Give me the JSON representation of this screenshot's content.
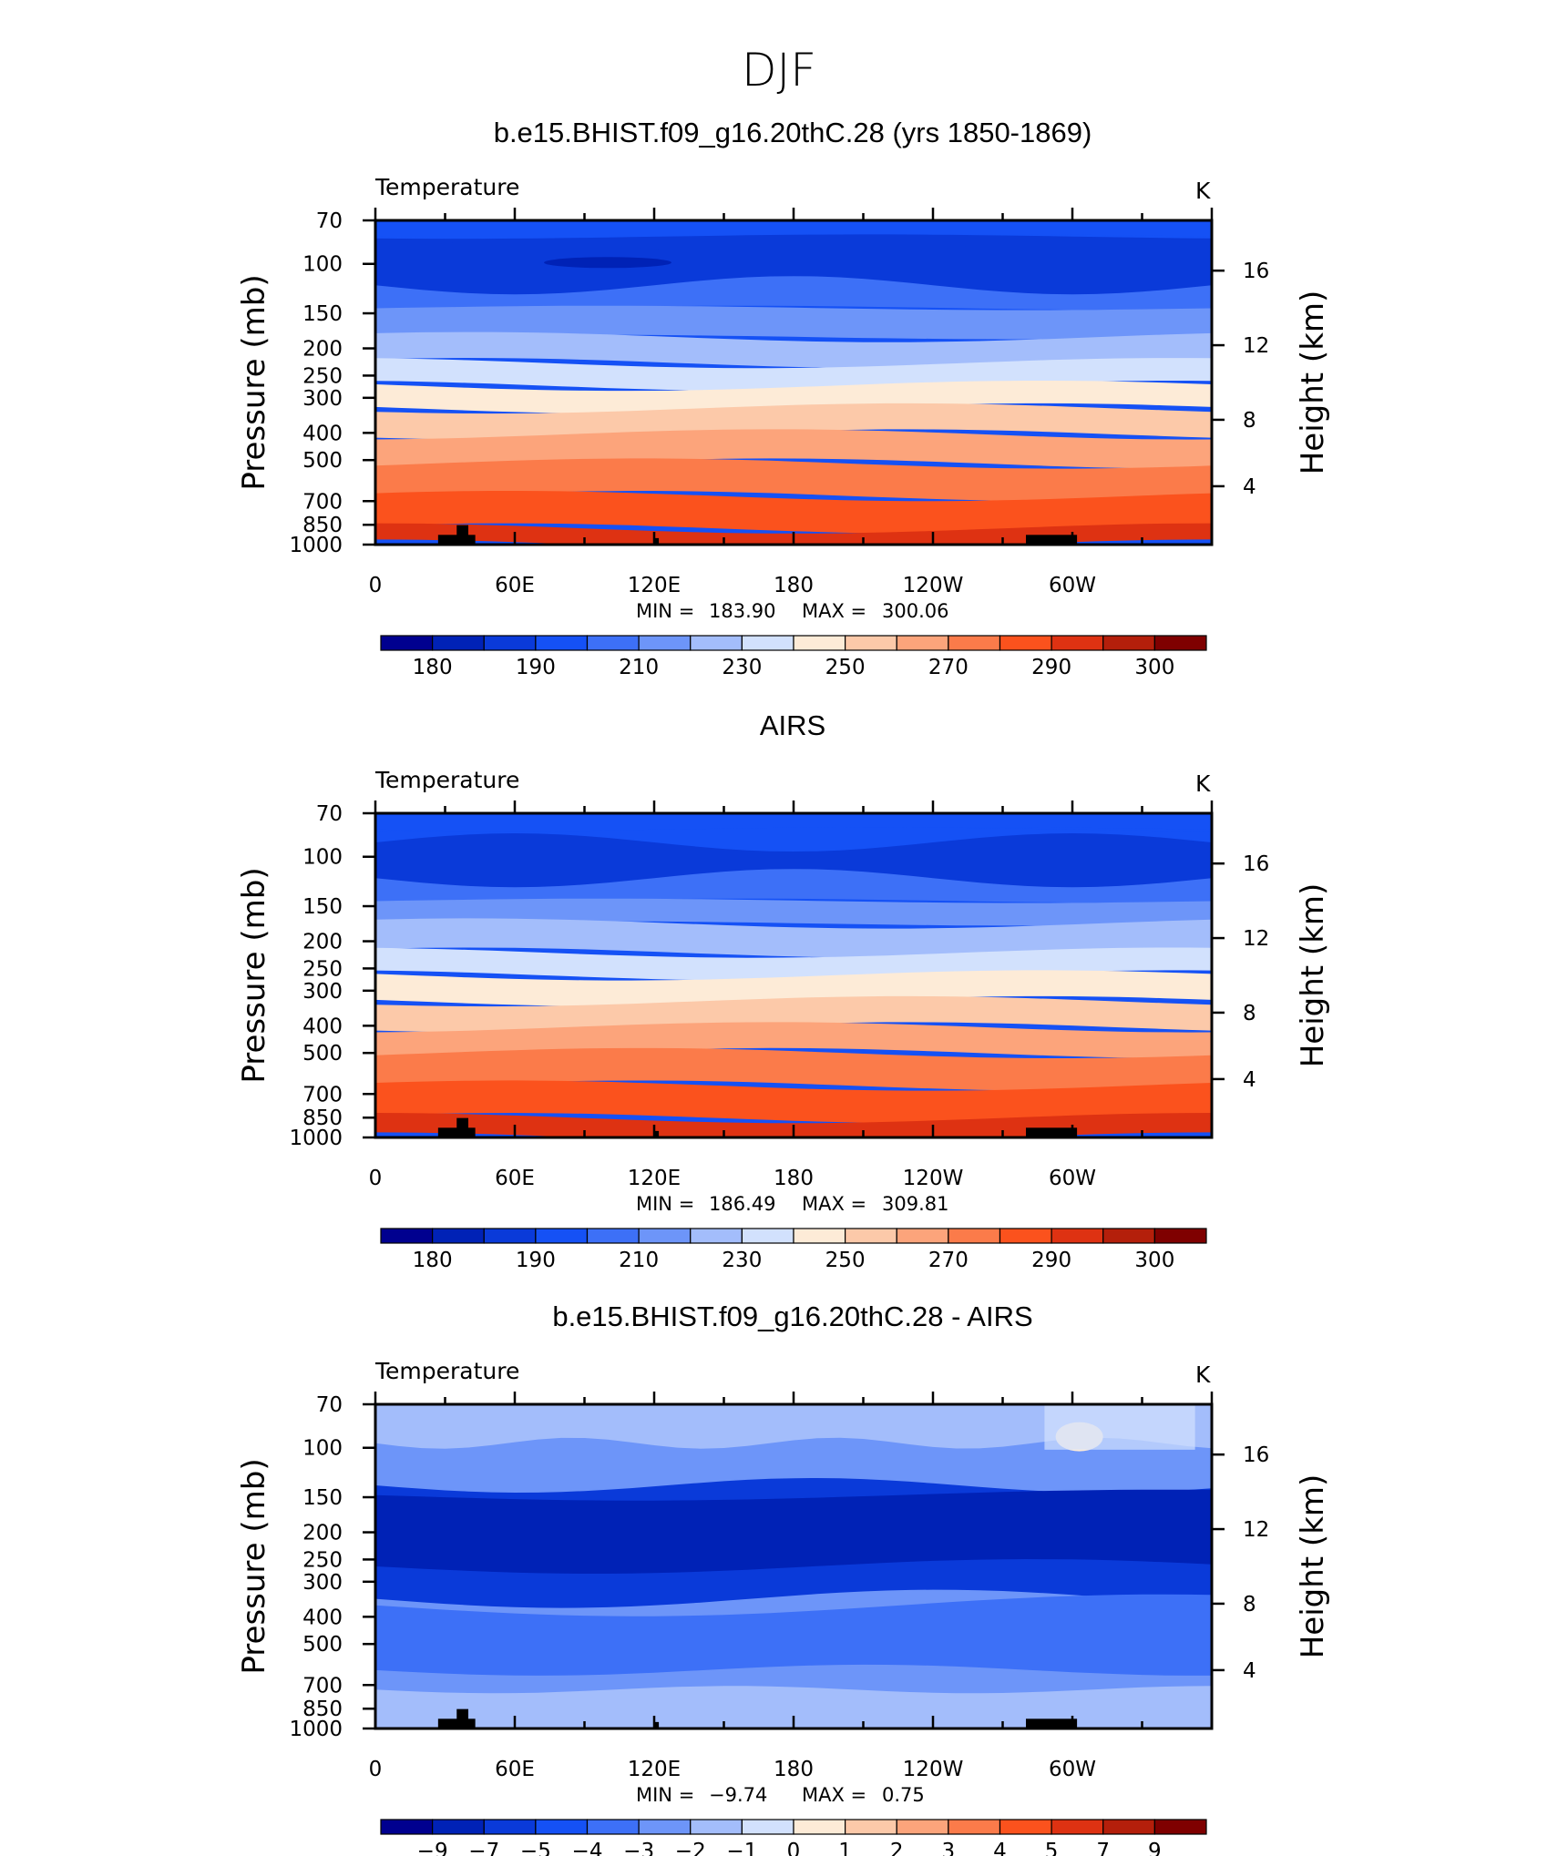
{
  "figure_title": "DJF",
  "common": {
    "subtitle_left": "Temperature",
    "units": "K",
    "y_axis_left": "Pressure (mb)",
    "y_axis_right": "Height (km)",
    "pressure_ticks": [
      "70",
      "100",
      "150",
      "200",
      "250",
      "300",
      "400",
      "500",
      "700",
      "850",
      "1000"
    ],
    "height_ticks": [
      "16",
      "12",
      "8",
      "4"
    ],
    "lon_ticks": [
      "0",
      "60E",
      "120E",
      "180",
      "120W",
      "60W"
    ]
  },
  "colors": {
    "abs_palette": [
      "#00008f",
      "#0022b6",
      "#0a3ad9",
      "#1551f5",
      "#3d70f7",
      "#6d95f9",
      "#a3bdfb",
      "#d2e1fd",
      "#fdebd7",
      "#fcc9a9",
      "#fca47b",
      "#fb7b4a",
      "#fb521d",
      "#de3212",
      "#b41f0b",
      "#7f0000"
    ],
    "diff_palette": [
      "#00008f",
      "#0022b6",
      "#0a3ad9",
      "#1551f5",
      "#3d70f7",
      "#6d95f9",
      "#a3bdfb",
      "#d2e1fd",
      "#fdebd7",
      "#fcc9a9",
      "#fca47b",
      "#fb7b4a",
      "#fb521d",
      "#de3212",
      "#b41f0b",
      "#7f0000"
    ]
  },
  "chart_data": [
    {
      "type": "heatmap",
      "title": "b.e15.BHIST.f09_g16.20thC.28 (yrs 1850-1869)",
      "subtitle": "Temperature",
      "units": "K",
      "xlabel": "",
      "ylabel": "Pressure (mb)",
      "ylabel_right": "Height (km)",
      "x_ticks": [
        "0",
        "60E",
        "120E",
        "180",
        "120W",
        "60W"
      ],
      "y_ticks": [
        "70",
        "100",
        "150",
        "200",
        "250",
        "300",
        "400",
        "500",
        "700",
        "850",
        "1000"
      ],
      "min_label": "MIN =",
      "min": "183.90",
      "max_label": "MAX =",
      "max": "300.06",
      "colorbar_labels": [
        "180",
        "190",
        "210",
        "230",
        "250",
        "270",
        "290",
        "300"
      ]
    },
    {
      "type": "heatmap",
      "title": "AIRS",
      "subtitle": "Temperature",
      "units": "K",
      "xlabel": "",
      "ylabel": "Pressure (mb)",
      "ylabel_right": "Height (km)",
      "x_ticks": [
        "0",
        "60E",
        "120E",
        "180",
        "120W",
        "60W"
      ],
      "y_ticks": [
        "70",
        "100",
        "150",
        "200",
        "250",
        "300",
        "400",
        "500",
        "700",
        "850",
        "1000"
      ],
      "min_label": "MIN =",
      "min": "186.49",
      "max_label": "MAX =",
      "max": "309.81",
      "colorbar_labels": [
        "180",
        "190",
        "210",
        "230",
        "250",
        "270",
        "290",
        "300"
      ]
    },
    {
      "type": "heatmap",
      "title": "b.e15.BHIST.f09_g16.20thC.28 - AIRS",
      "subtitle": "Temperature",
      "units": "K",
      "xlabel": "",
      "ylabel": "Pressure (mb)",
      "ylabel_right": "Height (km)",
      "x_ticks": [
        "0",
        "60E",
        "120E",
        "180",
        "120W",
        "60W"
      ],
      "y_ticks": [
        "70",
        "100",
        "150",
        "200",
        "250",
        "300",
        "400",
        "500",
        "700",
        "850",
        "1000"
      ],
      "min_label": "MIN =",
      "min": "−9.74",
      "max_label": "MAX =",
      "max": "0.75",
      "colorbar_labels": [
        "−9",
        "−7",
        "−5",
        "−4",
        "−3",
        "−2",
        "−1",
        "0",
        "1",
        "2",
        "3",
        "4",
        "5",
        "7",
        "9"
      ]
    }
  ]
}
